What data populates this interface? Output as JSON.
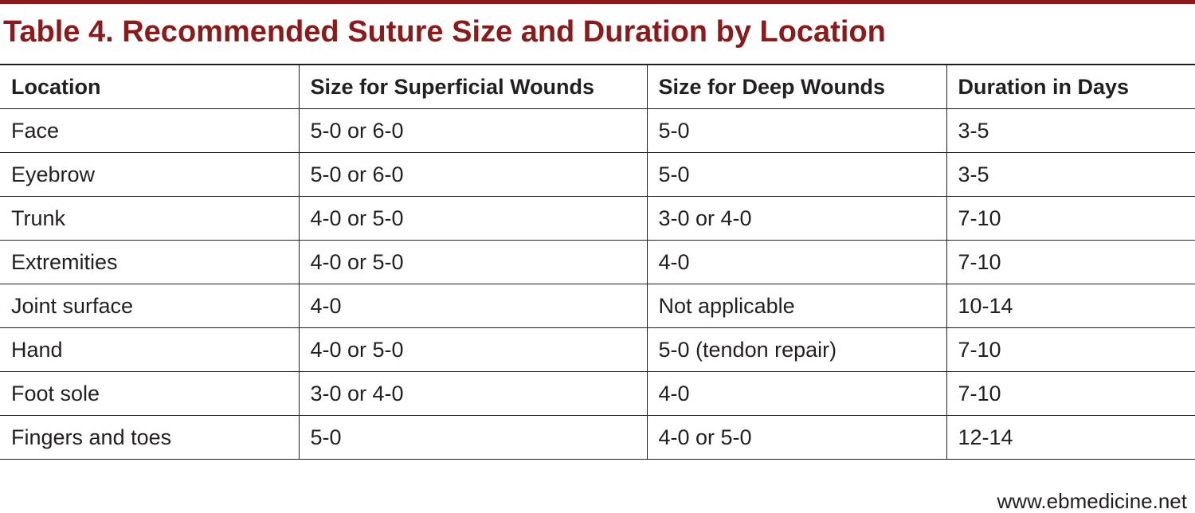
{
  "title": "Table 4. Recommended Suture Size and Duration by Location",
  "table": {
    "headers": [
      "Location",
      "Size for Superficial Wounds",
      "Size for Deep Wounds",
      "Duration in Days"
    ],
    "rows": [
      [
        "Face",
        "5-0 or 6-0",
        "5-0",
        "3-5"
      ],
      [
        "Eyebrow",
        "5-0 or 6-0",
        "5-0",
        "3-5"
      ],
      [
        "Trunk",
        "4-0 or 5-0",
        "3-0 or 4-0",
        "7-10"
      ],
      [
        "Extremities",
        "4-0 or 5-0",
        "4-0",
        "7-10"
      ],
      [
        "Joint surface",
        "4-0",
        "Not applicable",
        "10-14"
      ],
      [
        "Hand",
        "4-0 or 5-0",
        "5-0 (tendon repair)",
        "7-10"
      ],
      [
        "Foot sole",
        "3-0 or 4-0",
        "4-0",
        "7-10"
      ],
      [
        "Fingers and toes",
        "5-0",
        "4-0 or 5-0",
        "12-14"
      ]
    ]
  },
  "footer": "www.ebmedicine.net",
  "colors": {
    "accent": "#8b1a1a",
    "text": "#231f20",
    "background": "#ffffff"
  }
}
